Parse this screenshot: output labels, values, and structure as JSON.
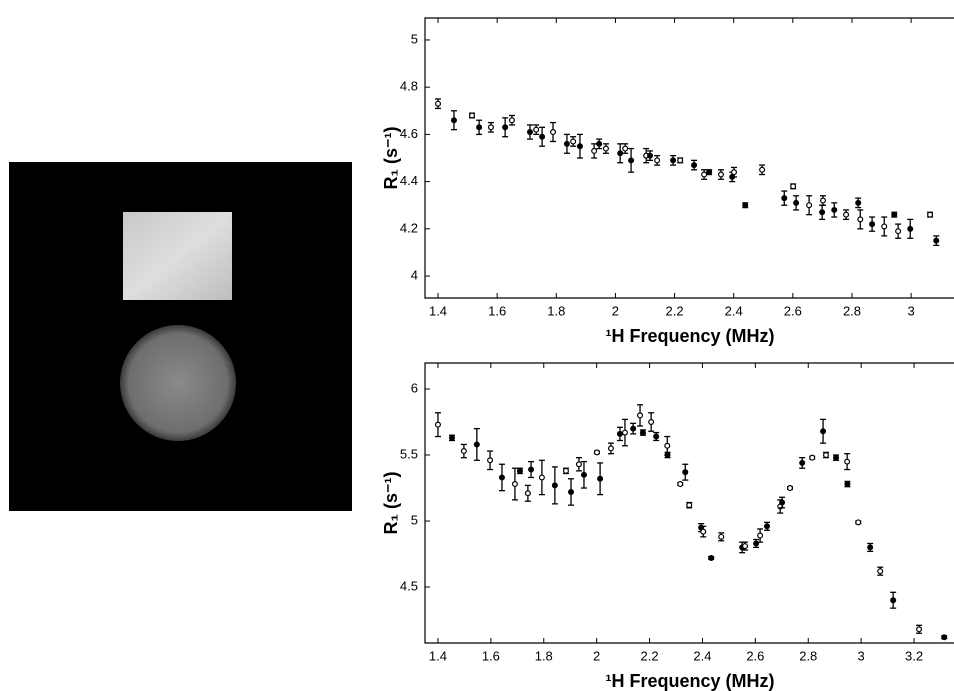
{
  "chart_data": [
    {
      "type": "scatter",
      "x_label": "¹H Frequency (MHz)",
      "y_label": "R₁ (s⁻¹)",
      "x": [
        1.4,
        1.454,
        1.515,
        1.539,
        1.579,
        1.627,
        1.65,
        1.711,
        1.732,
        1.752,
        1.789,
        1.836,
        1.857,
        1.88,
        1.928,
        1.945,
        1.968,
        2.016,
        2.033,
        2.053,
        2.104,
        2.117,
        2.141,
        2.195,
        2.219,
        2.266,
        2.3,
        2.317,
        2.357,
        2.395,
        2.401,
        2.439,
        2.496,
        2.571,
        2.601,
        2.611,
        2.655,
        2.699,
        2.702,
        2.74,
        2.78,
        2.821,
        2.828,
        2.868,
        2.909,
        2.943,
        2.956,
        2.997,
        3.064,
        3.085
      ],
      "values": [
        4.73,
        4.66,
        4.68,
        4.63,
        4.63,
        4.63,
        4.66,
        4.61,
        4.62,
        4.59,
        4.61,
        4.56,
        4.57,
        4.55,
        4.53,
        4.56,
        4.54,
        4.52,
        4.54,
        4.49,
        4.51,
        4.51,
        4.49,
        4.49,
        4.49,
        4.47,
        4.43,
        4.44,
        4.43,
        4.42,
        4.44,
        4.3,
        4.45,
        4.33,
        4.38,
        4.31,
        4.3,
        4.27,
        4.32,
        4.28,
        4.26,
        4.31,
        4.24,
        4.22,
        4.21,
        4.26,
        4.19,
        4.2,
        4.26,
        4.15
      ],
      "errors": [
        0.02,
        0.04,
        0.01,
        0.03,
        0.02,
        0.04,
        0.02,
        0.03,
        0.02,
        0.04,
        0.04,
        0.04,
        0.02,
        0.05,
        0.03,
        0.02,
        0.02,
        0.04,
        0.02,
        0.05,
        0.03,
        0.02,
        0.02,
        0.02,
        0.01,
        0.02,
        0.02,
        0.01,
        0.02,
        0.02,
        0.02,
        0.01,
        0.02,
        0.03,
        0.01,
        0.03,
        0.04,
        0.03,
        0.02,
        0.03,
        0.02,
        0.02,
        0.04,
        0.03,
        0.04,
        0.01,
        0.03,
        0.04,
        0.01,
        0.02
      ],
      "color": "#000000",
      "xlim": [
        1.356,
        3.145
      ],
      "ylim": [
        3.907,
        5.093
      ],
      "xticks": [
        1.4,
        1.6,
        1.8,
        2,
        2.2,
        2.4,
        2.6,
        2.8,
        3
      ],
      "yticks": [
        4,
        4.2,
        4.4,
        4.6,
        4.8,
        5
      ]
    },
    {
      "type": "scatter",
      "x_label": "¹H Frequency (MHz)",
      "y_label": "R₁ (s⁻¹)",
      "x": [
        1.4,
        1.453,
        1.498,
        1.547,
        1.597,
        1.642,
        1.691,
        1.71,
        1.74,
        1.752,
        1.793,
        1.842,
        1.884,
        1.903,
        1.933,
        1.952,
        2.001,
        2.013,
        2.054,
        2.088,
        2.107,
        2.138,
        2.164,
        2.175,
        2.206,
        2.225,
        2.267,
        2.268,
        2.316,
        2.335,
        2.35,
        2.395,
        2.403,
        2.433,
        2.471,
        2.55,
        2.561,
        2.603,
        2.618,
        2.644,
        2.694,
        2.701,
        2.731,
        2.777,
        2.815,
        2.856,
        2.867,
        2.905,
        2.947,
        2.948,
        2.989,
        3.034,
        3.072,
        3.121,
        3.219,
        3.314
      ],
      "values": [
        5.73,
        5.63,
        5.53,
        5.58,
        5.46,
        5.33,
        5.28,
        5.38,
        5.21,
        5.39,
        5.33,
        5.27,
        5.38,
        5.22,
        5.43,
        5.35,
        5.52,
        5.32,
        5.55,
        5.66,
        5.67,
        5.7,
        5.8,
        5.67,
        5.75,
        5.64,
        5.57,
        5.5,
        5.28,
        5.37,
        5.12,
        4.95,
        4.92,
        4.72,
        4.88,
        4.8,
        4.81,
        4.83,
        4.89,
        4.96,
        5.11,
        5.14,
        5.25,
        5.44,
        5.48,
        5.68,
        5.5,
        5.48,
        5.45,
        5.28,
        4.99,
        4.8,
        4.62,
        4.4,
        4.18,
        4.12
      ],
      "errors": [
        0.09,
        0.02,
        0.05,
        0.12,
        0.07,
        0.1,
        0.12,
        0.02,
        0.06,
        0.06,
        0.13,
        0.14,
        0.02,
        0.1,
        0.05,
        0.1,
        0.01,
        0.12,
        0.04,
        0.05,
        0.1,
        0.04,
        0.08,
        0.02,
        0.07,
        0.03,
        0.07,
        0.02,
        0.01,
        0.06,
        0.02,
        0.03,
        0.04,
        0.01,
        0.03,
        0.04,
        0.03,
        0.03,
        0.05,
        0.03,
        0.05,
        0.04,
        0.01,
        0.04,
        0.01,
        0.09,
        0.02,
        0.02,
        0.06,
        0.02,
        0.01,
        0.03,
        0.03,
        0.06,
        0.03,
        0.01
      ],
      "color": "#000000",
      "xlim": [
        1.351,
        3.351
      ],
      "ylim": [
        4.076,
        6.197
      ],
      "xticks": [
        1.4,
        1.6,
        1.8,
        2,
        2.2,
        2.4,
        2.6,
        2.8,
        3,
        3.2
      ],
      "yticks": [
        4.5,
        5,
        5.5,
        6
      ]
    }
  ]
}
